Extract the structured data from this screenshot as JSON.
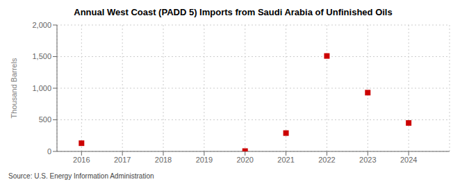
{
  "chart_data": {
    "type": "scatter",
    "title": "Annual West Coast (PADD 5) Imports from Saudi Arabia of Unfinished Oils",
    "ylabel": "Thousand Barrels",
    "annotation": "Source: U.S. Energy Information Administration",
    "x": [
      2016,
      2017,
      2018,
      2019,
      2020,
      2021,
      2022,
      2023,
      2024
    ],
    "values": [
      130,
      null,
      null,
      null,
      5,
      290,
      1510,
      930,
      450
    ],
    "color": "#cc0000",
    "marker": "square",
    "grid": true,
    "xlim": [
      2015.4,
      2025.0
    ],
    "xticks": [
      2016,
      2017,
      2018,
      2019,
      2020,
      2021,
      2022,
      2023,
      2024
    ],
    "ylim": [
      0,
      2000
    ],
    "yticks": [
      0,
      500,
      {
        "value": 1000,
        "label": "1,000"
      },
      {
        "value": 1500,
        "label": "1,500"
      },
      {
        "value": 2000,
        "label": "2,000"
      }
    ]
  }
}
